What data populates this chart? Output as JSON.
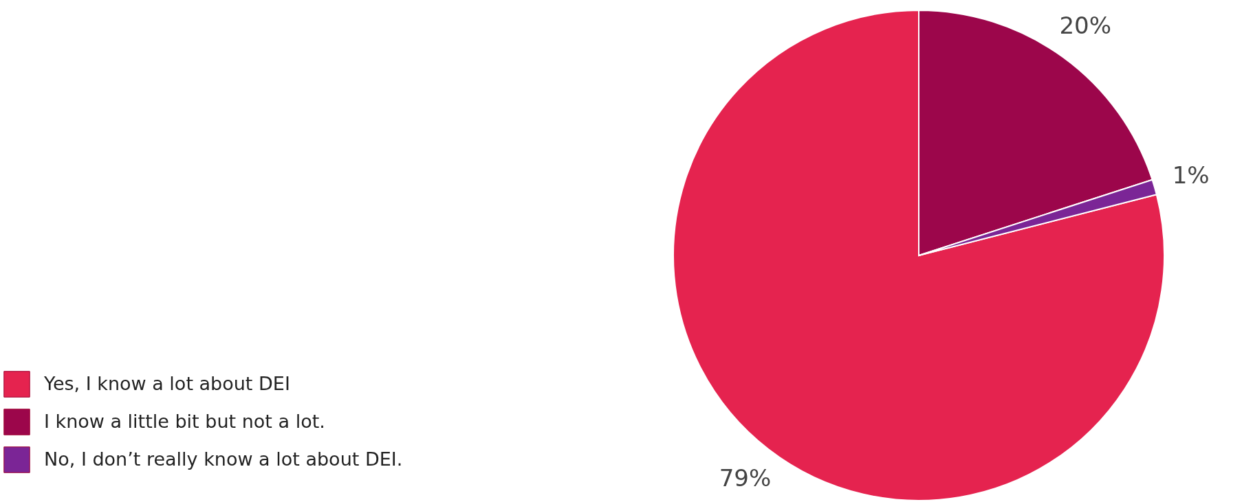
{
  "chart_data": {
    "type": "pie",
    "categories": [
      "Yes, I know a lot about DEI",
      "I know a little bit but not a lot.",
      "No, I don’t really know a lot about DEI."
    ],
    "values": [
      79,
      20,
      1
    ],
    "value_labels": [
      "79%",
      "20%",
      "1%"
    ],
    "colors": [
      "#e5234f",
      "#9c064b",
      "#7b2596"
    ],
    "legend": "bottom left"
  }
}
